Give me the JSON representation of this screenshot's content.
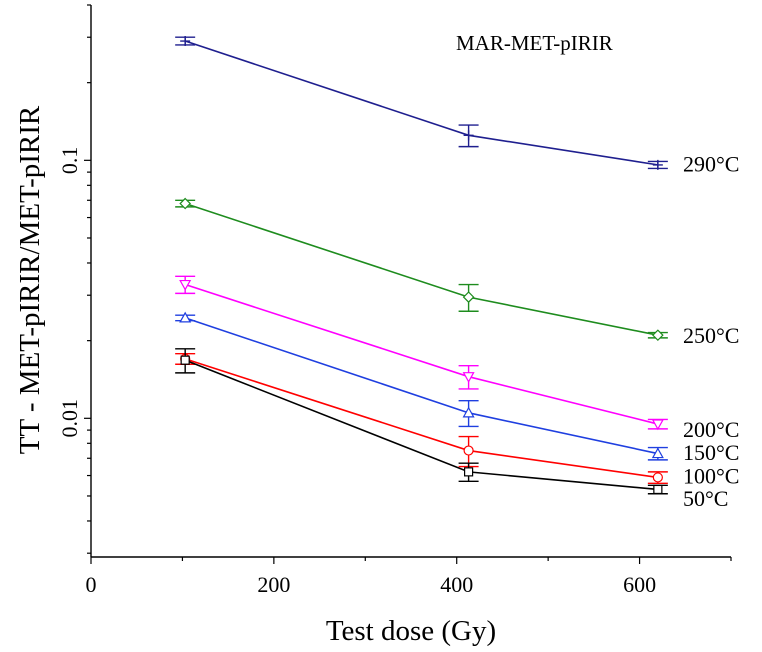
{
  "chart_data": {
    "type": "line",
    "title": "",
    "annotation": "MAR-MET-pIRIR",
    "xlabel": "Test dose (Gy)",
    "ylabel": "TT - MET-pIRIR/MET-pIRIR",
    "xlim": [
      0,
      700
    ],
    "ylim": [
      0.0029,
      0.4
    ],
    "yscale": "log",
    "xticks": [
      0,
      200,
      400,
      600
    ],
    "xtick_labels": [
      "0",
      "200",
      "400",
      "600"
    ],
    "yticks": [
      0.01,
      0.1
    ],
    "ytick_labels": [
      "0.01",
      "0.1"
    ],
    "grid": false,
    "x": [
      103,
      413,
      620
    ],
    "series": [
      {
        "name": "290°C",
        "color": "#1f1f8f",
        "marker": "plus",
        "values": [
          0.29,
          0.125,
          0.096
        ],
        "err": [
          0.01,
          0.012,
          0.003
        ]
      },
      {
        "name": "250°C",
        "color": "#1e8c1e",
        "marker": "diamond",
        "values": [
          0.068,
          0.0295,
          0.021
        ],
        "err": [
          0.002,
          0.0035,
          0.0005
        ]
      },
      {
        "name": "200°C",
        "color": "#ff00ff",
        "marker": "triangle-down",
        "values": [
          0.033,
          0.0145,
          0.0095
        ],
        "err": [
          0.0025,
          0.0015,
          0.0004
        ]
      },
      {
        "name": "150°C",
        "color": "#1f3fe0",
        "marker": "triangle-up",
        "values": [
          0.0245,
          0.0105,
          0.0073
        ],
        "err": [
          0.0006,
          0.0012,
          0.0004
        ]
      },
      {
        "name": "100°C",
        "color": "#ff0000",
        "marker": "circle",
        "values": [
          0.017,
          0.0075,
          0.0059
        ],
        "err": [
          0.0008,
          0.001,
          0.0003
        ]
      },
      {
        "name": "50°C",
        "color": "#000000",
        "marker": "square",
        "values": [
          0.0168,
          0.0062,
          0.0053
        ],
        "err": [
          0.0018,
          0.0005,
          0.0002
        ]
      }
    ]
  }
}
